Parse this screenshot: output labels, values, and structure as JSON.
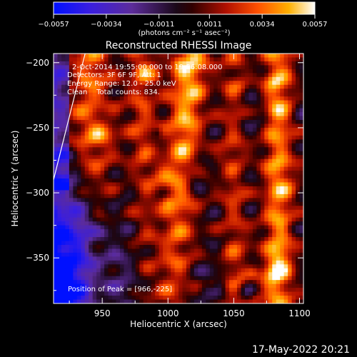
{
  "chart_data": {
    "type": "heatmap",
    "title": "Reconstructed RHESSI Image",
    "xlabel": "Heliocentric X (arcsec)",
    "ylabel": "Heliocentric Y (arcsec)",
    "xlim": [
      913,
      1103
    ],
    "ylim": [
      -385,
      -193
    ],
    "x_ticks": [
      950,
      1000,
      1050,
      1100
    ],
    "x_tick_labels": [
      "950",
      "1000",
      "1050",
      "1100"
    ],
    "y_ticks": [
      -200,
      -250,
      -300,
      -350
    ],
    "y_tick_labels": [
      "−200",
      "−250",
      "−300",
      "−350"
    ],
    "colorbar": {
      "range": [
        -0.0057,
        0.0057
      ],
      "ticks": [
        -0.0057,
        -0.0034,
        -0.0011,
        0.0011,
        0.0034,
        0.0057
      ],
      "tick_labels": [
        "−0.0057",
        "−0.0034",
        "−0.0011",
        "0.0011",
        "0.0034",
        "0.0057"
      ],
      "units_text": "(photons cm⁻² s⁻¹ asec⁻²)"
    },
    "annotations": [
      "2-Oct-2014 19:55:00.000 to 19:56:08.000",
      "Detectors: 3F 6F 9F, Att: 1",
      "Energy Range: 12.0 - 25.0 keV",
      "Clean    Total counts: 834."
    ],
    "peak_text": "Position of Peak = [966,-225]",
    "peak": [
      966,
      -225
    ],
    "limb_line": [
      [
        913,
        -290
      ],
      [
        937,
        -193
      ]
    ],
    "colors": {
      "negative_low": "#0000ff",
      "negative_high": "#5a2aa8",
      "zero": "#300000",
      "positive_mid": "#e83000",
      "positive_high": "#ffc000",
      "max": "#ffffff"
    }
  },
  "footer": {
    "timestamp": "17-May-2022 20:21"
  }
}
